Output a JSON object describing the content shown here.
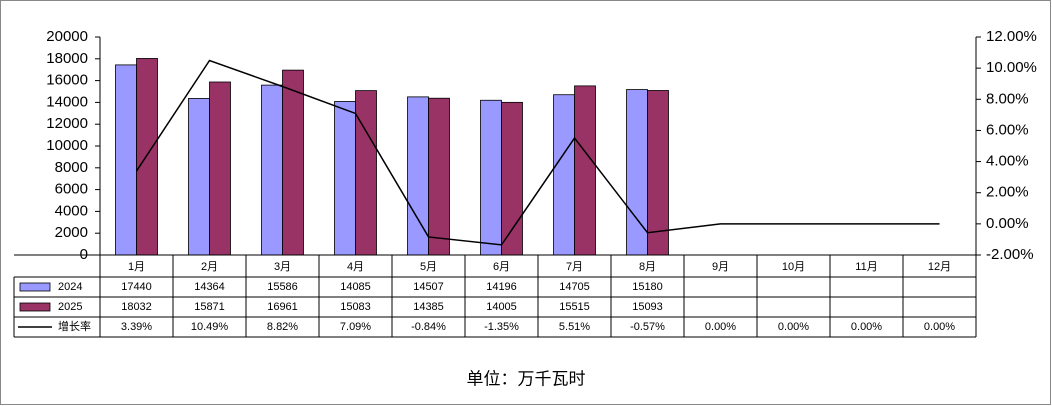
{
  "chart_data": {
    "type": "bar-line",
    "categories": [
      "1月",
      "2月",
      "3月",
      "4月",
      "5月",
      "6月",
      "7月",
      "8月",
      "9月",
      "10月",
      "11月",
      "12月"
    ],
    "series": [
      {
        "name": "2024",
        "color": "#9999ff",
        "values": [
          17440,
          14364,
          15586,
          14085,
          14507,
          14196,
          14705,
          15180,
          null,
          null,
          null,
          null
        ]
      },
      {
        "name": "2025",
        "color": "#993366",
        "values": [
          18032,
          15871,
          16961,
          15083,
          14385,
          14005,
          15515,
          15093,
          null,
          null,
          null,
          null
        ]
      },
      {
        "name": "增长率",
        "color": "#000000",
        "axis": "y2",
        "values": [
          3.39,
          10.49,
          8.82,
          7.09,
          -0.84,
          -1.35,
          5.51,
          -0.57,
          0,
          0,
          0,
          0
        ],
        "value_labels": [
          "3.39%",
          "10.49%",
          "8.82%",
          "7.09%",
          "-0.84%",
          "-1.35%",
          "5.51%",
          "-0.57%",
          "0.00%",
          "0.00%",
          "0.00%",
          "0.00%"
        ]
      }
    ],
    "ylim": [
      0,
      20000
    ],
    "yticks": [
      0,
      2000,
      4000,
      6000,
      8000,
      10000,
      12000,
      14000,
      16000,
      18000,
      20000
    ],
    "y2lim": [
      -2,
      12
    ],
    "y2ticks": [
      {
        "value": -2,
        "label": "-2.00%"
      },
      {
        "value": 0,
        "label": "0.00%"
      },
      {
        "value": 2,
        "label": "2.00%"
      },
      {
        "value": 4,
        "label": "4.00%"
      },
      {
        "value": 6,
        "label": "6.00%"
      },
      {
        "value": 8,
        "label": "8.00%"
      },
      {
        "value": 10,
        "label": "10.00%"
      },
      {
        "value": 12,
        "label": "12.00%"
      }
    ],
    "grid": false,
    "footnote": "单位：万千瓦时"
  }
}
